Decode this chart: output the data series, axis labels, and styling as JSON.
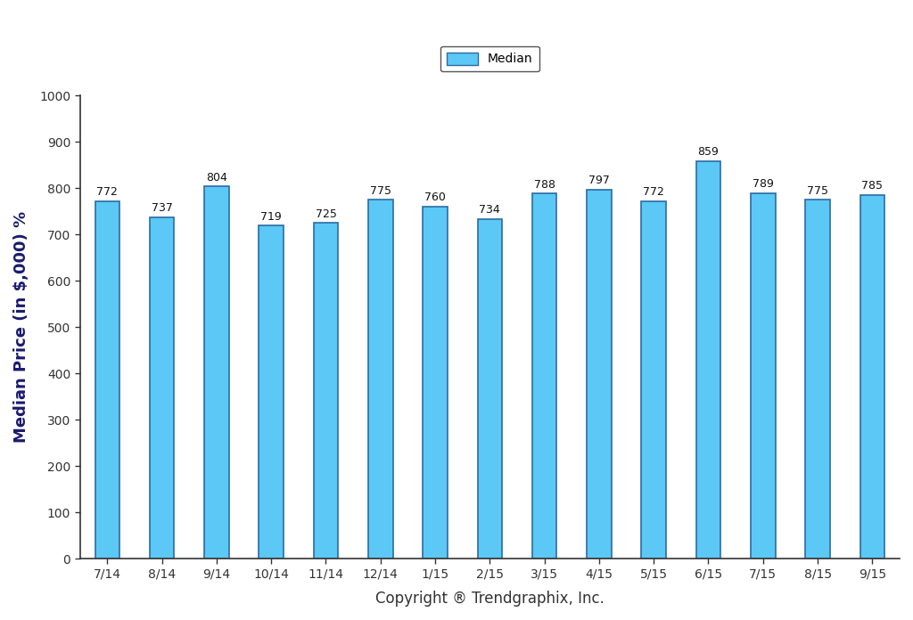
{
  "categories": [
    "7/14",
    "8/14",
    "9/14",
    "10/14",
    "11/14",
    "12/14",
    "1/15",
    "2/15",
    "3/15",
    "4/15",
    "5/15",
    "6/15",
    "7/15",
    "8/15",
    "9/15"
  ],
  "values": [
    772,
    737,
    804,
    719,
    725,
    775,
    760,
    734,
    788,
    797,
    772,
    859,
    789,
    775,
    785
  ],
  "bar_color": "#5BC8F5",
  "bar_edge_color": "#2B6CA3",
  "ylabel": "Median Price (in $,000) %",
  "xlabel": "Copyright ® Trendgraphix, Inc.",
  "ylim": [
    0,
    1000
  ],
  "yticks": [
    0,
    100,
    200,
    300,
    400,
    500,
    600,
    700,
    800,
    900,
    1000
  ],
  "legend_label": "Median",
  "background_color": "#FFFFFF",
  "bar_width": 0.45,
  "annotation_fontsize": 9,
  "axis_label_fontsize": 13,
  "tick_fontsize": 10,
  "legend_fontsize": 10,
  "spine_color": "#333333"
}
